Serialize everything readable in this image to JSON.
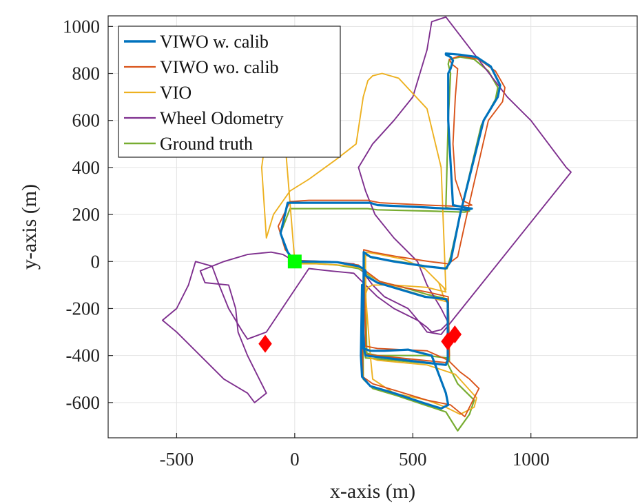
{
  "chart_data": {
    "type": "line",
    "xlabel": "x-axis (m)",
    "ylabel": "y-axis (m)",
    "xlim": [
      -790,
      1450
    ],
    "ylim": [
      -750,
      1045
    ],
    "grid": true,
    "legend_position": "top-left",
    "x_ticks": [
      -500,
      0,
      500,
      1000
    ],
    "x_tick_labels": [
      "-500",
      "0",
      "500",
      "1000"
    ],
    "y_ticks": [
      -600,
      -400,
      -200,
      0,
      200,
      400,
      600,
      800,
      1000
    ],
    "y_tick_labels": [
      "-600",
      "-400",
      "-200",
      "0",
      "200",
      "400",
      "600",
      "800",
      "1000"
    ],
    "series": [
      {
        "name": "VIWO w. calib",
        "color": "#0072BD",
        "width": 3.2,
        "x": [
          0,
          80,
          180,
          270,
          290,
          300,
          300,
          350,
          450,
          550,
          640,
          648,
          648,
          640,
          300,
          295,
          290,
          285,
          280,
          285,
          320,
          420,
          540,
          620,
          650,
          640,
          580,
          480,
          380,
          320,
          290,
          292,
          320,
          420,
          550,
          640,
          660,
          700,
          800,
          860,
          870,
          830,
          770,
          700,
          640,
          640,
          660,
          670,
          660,
          650,
          650,
          660,
          670,
          720,
          750,
          730,
          560,
          350,
          320,
          300,
          290,
          280,
          170,
          60,
          -30,
          -60,
          -30,
          0
        ],
        "y": [
          0,
          0,
          -3,
          -20,
          -30,
          -40,
          -60,
          -90,
          -120,
          -150,
          -160,
          -175,
          -420,
          -440,
          -400,
          -380,
          -300,
          -100,
          -400,
          -490,
          -530,
          -560,
          -600,
          -625,
          -610,
          -560,
          -400,
          -375,
          -380,
          -380,
          -370,
          40,
          20,
          0,
          -20,
          -30,
          0,
          200,
          600,
          700,
          750,
          830,
          870,
          880,
          885,
          880,
          870,
          855,
          820,
          800,
          600,
          420,
          240,
          230,
          225,
          220,
          230,
          240,
          250,
          250,
          250,
          250,
          250,
          250,
          250,
          120,
          40,
          0
        ]
      },
      {
        "name": "VIWO wo. calib",
        "color": "#D95319",
        "width": 1.9,
        "x": [
          0,
          80,
          180,
          270,
          300,
          360,
          460,
          560,
          650,
          655,
          640,
          300,
          292,
          285,
          288,
          330,
          430,
          560,
          660,
          720,
          760,
          780,
          740,
          700,
          660,
          650,
          560,
          350,
          300,
          292,
          330,
          440,
          570,
          650,
          690,
          740,
          820,
          880,
          890,
          850,
          780,
          700,
          655,
          665,
          690,
          680,
          670,
          680,
          710,
          750,
          690,
          560,
          360,
          310,
          290,
          170,
          60,
          -20,
          -70,
          -40,
          0
        ],
        "y": [
          5,
          2,
          -2,
          -15,
          -40,
          -85,
          -110,
          -130,
          -150,
          -400,
          -430,
          -395,
          -370,
          -150,
          -490,
          -520,
          -550,
          -590,
          -610,
          -660,
          -580,
          -540,
          -500,
          -470,
          -430,
          -420,
          -380,
          -370,
          -360,
          50,
          40,
          20,
          0,
          -10,
          20,
          250,
          600,
          680,
          740,
          810,
          860,
          875,
          860,
          840,
          820,
          700,
          500,
          350,
          260,
          240,
          235,
          240,
          250,
          260,
          260,
          260,
          260,
          255,
          150,
          50,
          5
        ]
      },
      {
        "name": "VIO",
        "color": "#EDB120",
        "width": 1.9,
        "x": [
          0,
          90,
          190,
          270,
          300,
          360,
          460,
          560,
          640,
          630,
          620,
          610,
          620,
          630,
          640,
          560,
          420,
          330,
          310,
          300,
          320,
          330,
          420,
          560,
          640,
          700,
          760,
          770,
          680,
          560,
          350,
          320,
          300,
          300,
          360,
          460,
          550,
          610,
          640,
          620,
          560,
          440,
          370,
          330,
          310,
          290,
          260,
          170,
          60,
          -20,
          -90,
          -120,
          -140,
          -100,
          -40,
          0
        ],
        "y": [
          -10,
          -10,
          -15,
          -25,
          -45,
          -85,
          -120,
          -150,
          -170,
          -150,
          -120,
          -90,
          -100,
          -110,
          -130,
          -110,
          -100,
          -100,
          -110,
          -140,
          -400,
          -500,
          -560,
          -590,
          -620,
          -650,
          -620,
          -580,
          -480,
          -440,
          -420,
          -410,
          -390,
          40,
          30,
          10,
          -30,
          -90,
          -120,
          400,
          650,
          780,
          800,
          790,
          770,
          700,
          500,
          430,
          350,
          300,
          200,
          100,
          400,
          700,
          500,
          0
        ]
      },
      {
        "name": "Wheel Odometry",
        "color": "#7E2F8E",
        "width": 1.9,
        "x": [
          0,
          150,
          250,
          280,
          300,
          330,
          380,
          480,
          530,
          560,
          620,
          1170,
          1150,
          1000,
          900,
          640,
          580,
          560,
          500,
          420,
          330,
          270,
          300,
          340,
          420,
          520,
          560,
          620,
          650,
          620,
          580,
          560,
          520,
          420,
          350,
          300,
          250,
          150,
          60,
          -120,
          -200,
          -220,
          -280,
          -320,
          -350,
          -420,
          -450,
          -500,
          -560,
          -500,
          -400,
          -300,
          -200,
          -170,
          -120,
          -150,
          -200,
          -240,
          -250,
          -280,
          -380,
          -400,
          -300,
          -200,
          -100,
          -50,
          0
        ],
        "y": [
          0,
          0,
          -10,
          -30,
          -60,
          -100,
          -150,
          -200,
          -260,
          -300,
          -310,
          380,
          400,
          600,
          700,
          1040,
          1020,
          900,
          700,
          600,
          500,
          400,
          300,
          200,
          100,
          0,
          -100,
          -200,
          -260,
          -290,
          -300,
          -280,
          -250,
          -200,
          -150,
          -100,
          -50,
          -40,
          -30,
          -300,
          -330,
          -300,
          -200,
          -100,
          -20,
          0,
          -100,
          -200,
          -250,
          -300,
          -400,
          -500,
          -560,
          -600,
          -560,
          -500,
          -400,
          -300,
          -200,
          -100,
          -90,
          -40,
          0,
          30,
          40,
          30,
          0
        ]
      },
      {
        "name": "Ground truth",
        "color": "#77AC30",
        "width": 2.2,
        "x": [
          0,
          80,
          180,
          270,
          300,
          360,
          460,
          560,
          650,
          655,
          640,
          300,
          294,
          288,
          290,
          330,
          430,
          550,
          640,
          690,
          740,
          760,
          720,
          690,
          650,
          645,
          560,
          350,
          305,
          298,
          330,
          440,
          560,
          645,
          660,
          700,
          790,
          850,
          860,
          820,
          760,
          700,
          655,
          650,
          655,
          660,
          650,
          645,
          640,
          700,
          740,
          720,
          560,
          350,
          310,
          295,
          170,
          60,
          -20,
          -60,
          -30,
          0
        ],
        "y": [
          -5,
          -8,
          -15,
          -30,
          -50,
          -85,
          -110,
          -140,
          -160,
          -420,
          -440,
          -410,
          -380,
          -150,
          -500,
          -540,
          -570,
          -610,
          -640,
          -720,
          -650,
          -590,
          -550,
          -520,
          -440,
          -410,
          -400,
          -400,
          -390,
          30,
          15,
          0,
          -20,
          -30,
          20,
          200,
          580,
          690,
          740,
          810,
          860,
          870,
          860,
          840,
          820,
          800,
          600,
          420,
          230,
          220,
          215,
          210,
          215,
          220,
          225,
          225,
          225,
          225,
          225,
          120,
          40,
          0
        ]
      }
    ],
    "markers": [
      {
        "kind": "start",
        "shape": "square",
        "color": "#00FF00",
        "x": [
          0
        ],
        "y": [
          0
        ]
      },
      {
        "kind": "end",
        "shape": "diamond",
        "color": "#FF0000",
        "x": [
          -125,
          648,
          678
        ],
        "y": [
          -350,
          -340,
          -310
        ]
      }
    ]
  }
}
